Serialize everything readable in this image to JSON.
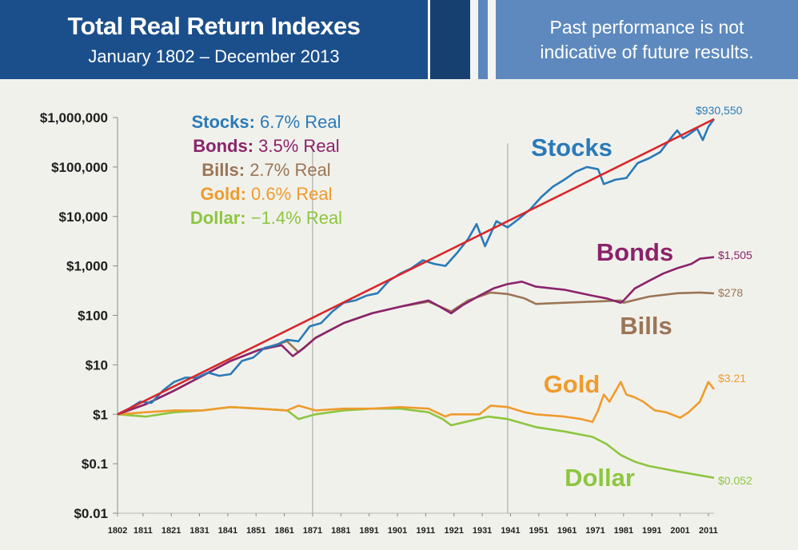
{
  "header": {
    "title": "Total Real Return Indexes",
    "subtitle": "January 1802 – December 2013",
    "disclaimer_line1": "Past performance is not",
    "disclaimer_line2": "indicative of future results."
  },
  "colors": {
    "header_blue": "#1b4f8c",
    "header_light_blue": "#5d89be",
    "stocks": "#2a7ab8",
    "bonds": "#8b236b",
    "bills": "#9a7556",
    "gold": "#ef9b2d",
    "dollar": "#8dc63f",
    "trend": "#d9262a"
  },
  "chart_data": {
    "type": "line",
    "y_scale": "log",
    "ylim": [
      0.01,
      1000000
    ],
    "xlim": [
      1802,
      2013
    ],
    "y_ticks": [
      {
        "value": 1000000,
        "label": "$1,000,000"
      },
      {
        "value": 100000,
        "label": "$100,000"
      },
      {
        "value": 10000,
        "label": "$10,000"
      },
      {
        "value": 1000,
        "label": "$1,000"
      },
      {
        "value": 100,
        "label": "$100"
      },
      {
        "value": 10,
        "label": "$10"
      },
      {
        "value": 1,
        "label": "$1"
      },
      {
        "value": 0.1,
        "label": "$0.1"
      },
      {
        "value": 0.01,
        "label": "$0.01"
      }
    ],
    "x_ticks": [
      "1802",
      "1811",
      "1821",
      "1831",
      "1841",
      "1851",
      "1861",
      "1871",
      "1881",
      "1891",
      "1901",
      "1911",
      "1921",
      "1931",
      "1941",
      "1951",
      "1961",
      "1971",
      "1981",
      "1991",
      "2001",
      "2011"
    ],
    "vertical_lines": [
      1871,
      1940
    ],
    "legend": [
      {
        "name": "Stocks:",
        "rate": " 6.7% Real",
        "color": "#2a7ab8"
      },
      {
        "name": "Bonds:",
        "rate": " 3.5% Real",
        "color": "#8b236b"
      },
      {
        "name": "Bills:",
        "rate": " 2.7% Real",
        "color": "#9a7556"
      },
      {
        "name": "Gold:",
        "rate": " 0.6% Real",
        "color": "#ef9b2d"
      },
      {
        "name": "Dollar:",
        "rate": " −1.4% Real",
        "color": "#8dc63f"
      }
    ],
    "series": [
      {
        "name": "Stocks",
        "end_label": "$930,550",
        "color": "#2a7ab8",
        "x": [
          1802,
          1806,
          1810,
          1814,
          1818,
          1822,
          1826,
          1830,
          1834,
          1838,
          1842,
          1846,
          1850,
          1854,
          1858,
          1862,
          1866,
          1870,
          1874,
          1878,
          1882,
          1886,
          1890,
          1894,
          1898,
          1902,
          1906,
          1910,
          1914,
          1918,
          1922,
          1926,
          1929,
          1932,
          1936,
          1940,
          1944,
          1948,
          1952,
          1956,
          1960,
          1964,
          1968,
          1972,
          1974,
          1978,
          1982,
          1986,
          1990,
          1994,
          1998,
          2000,
          2002,
          2004,
          2007,
          2009,
          2011,
          2013
        ],
        "y": [
          1,
          1.3,
          1.8,
          1.7,
          3,
          4.5,
          5.5,
          5.5,
          7,
          6,
          6.5,
          12,
          14,
          22,
          25,
          32,
          30,
          60,
          70,
          120,
          180,
          200,
          250,
          280,
          500,
          700,
          900,
          1300,
          1100,
          1000,
          1800,
          3500,
          7000,
          2500,
          8000,
          6000,
          9000,
          14000,
          25000,
          40000,
          55000,
          80000,
          100000,
          90000,
          45000,
          55000,
          60000,
          120000,
          150000,
          200000,
          400000,
          550000,
          380000,
          450000,
          600000,
          350000,
          650000,
          930550
        ]
      },
      {
        "name": "Bonds",
        "end_label": "$1,505",
        "color": "#8b236b",
        "x": [
          1802,
          1812,
          1822,
          1832,
          1842,
          1852,
          1860,
          1864,
          1868,
          1872,
          1882,
          1892,
          1902,
          1912,
          1916,
          1920,
          1924,
          1930,
          1935,
          1940,
          1945,
          1950,
          1960,
          1970,
          1975,
          1980,
          1981,
          1985,
          1990,
          1995,
          2000,
          2005,
          2008,
          2013
        ],
        "y": [
          1,
          1.6,
          3,
          6,
          12,
          20,
          25,
          15,
          22,
          35,
          70,
          110,
          150,
          200,
          150,
          110,
          160,
          250,
          350,
          430,
          480,
          380,
          330,
          250,
          220,
          180,
          200,
          350,
          500,
          700,
          900,
          1100,
          1400,
          1505
        ]
      },
      {
        "name": "Bills",
        "end_label": "$278",
        "color": "#9a7556",
        "x": [
          1802,
          1812,
          1822,
          1832,
          1842,
          1852,
          1862,
          1866,
          1872,
          1882,
          1892,
          1902,
          1912,
          1920,
          1926,
          1934,
          1940,
          1946,
          1950,
          1960,
          1970,
          1980,
          1981,
          1990,
          2000,
          2008,
          2013
        ],
        "y": [
          1,
          1.6,
          3,
          6,
          12,
          20,
          30,
          18,
          35,
          70,
          110,
          150,
          190,
          120,
          200,
          290,
          270,
          220,
          170,
          180,
          190,
          200,
          180,
          240,
          280,
          290,
          278
        ]
      },
      {
        "name": "Gold",
        "end_label": "$3.21",
        "color": "#ef9b2d",
        "x": [
          1802,
          1812,
          1822,
          1832,
          1842,
          1852,
          1862,
          1866,
          1872,
          1882,
          1892,
          1902,
          1912,
          1918,
          1920,
          1930,
          1934,
          1940,
          1946,
          1950,
          1960,
          1966,
          1970,
          1972,
          1974,
          1976,
          1980,
          1982,
          1985,
          1988,
          1992,
          1996,
          2000,
          2001,
          2004,
          2008,
          2011,
          2013
        ],
        "y": [
          1,
          1.1,
          1.2,
          1.2,
          1.4,
          1.3,
          1.2,
          1.5,
          1.2,
          1.3,
          1.3,
          1.4,
          1.3,
          0.9,
          1,
          1,
          1.5,
          1.4,
          1.1,
          1,
          0.9,
          0.8,
          0.7,
          1.2,
          2.5,
          1.8,
          4.5,
          2.5,
          2.2,
          1.8,
          1.2,
          1.1,
          0.9,
          0.85,
          1.1,
          1.8,
          4.5,
          3.21
        ]
      },
      {
        "name": "Dollar",
        "end_label": "$0.052",
        "color": "#8dc63f",
        "x": [
          1802,
          1812,
          1822,
          1832,
          1842,
          1852,
          1862,
          1866,
          1872,
          1882,
          1892,
          1902,
          1912,
          1917,
          1920,
          1925,
          1933,
          1940,
          1950,
          1960,
          1970,
          1975,
          1980,
          1985,
          1990,
          2000,
          2013
        ],
        "y": [
          1,
          0.9,
          1.1,
          1.2,
          1.4,
          1.3,
          1.2,
          0.8,
          1,
          1.2,
          1.3,
          1.3,
          1.1,
          0.8,
          0.6,
          0.7,
          0.9,
          0.8,
          0.55,
          0.45,
          0.35,
          0.25,
          0.15,
          0.11,
          0.09,
          0.07,
          0.052
        ]
      }
    ],
    "trend": {
      "x": [
        1802,
        2013
      ],
      "y": [
        1,
        930550
      ]
    }
  }
}
